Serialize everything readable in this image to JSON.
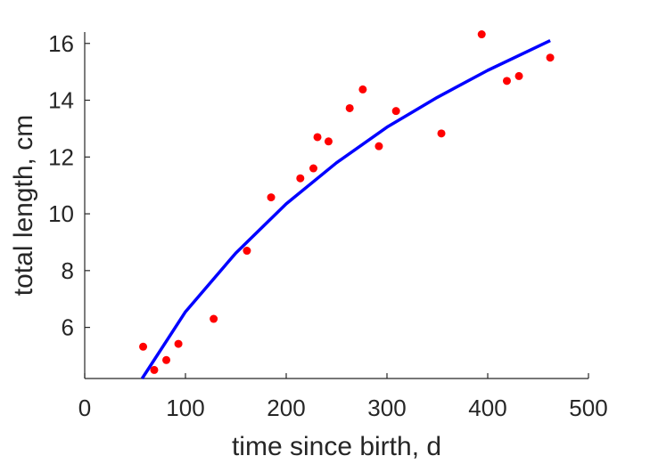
{
  "chart_data": {
    "type": "scatter",
    "xlabel": "time since birth, d",
    "ylabel": "total length, cm",
    "xlim": [
      0,
      500
    ],
    "ylim": [
      4.2,
      16.4
    ],
    "xticks": [
      0,
      100,
      200,
      300,
      400,
      500
    ],
    "yticks": [
      6,
      8,
      10,
      12,
      14,
      16
    ],
    "grid": false,
    "series": [
      {
        "kind": "points",
        "color": "#ff0000",
        "x": [
          58,
          69,
          81,
          93,
          128,
          161,
          185,
          214,
          227,
          231,
          242,
          263,
          276,
          292,
          309,
          354,
          394,
          419,
          431,
          462
        ],
        "y": [
          5.32,
          4.5,
          4.85,
          5.42,
          6.3,
          8.7,
          10.58,
          11.25,
          11.6,
          12.7,
          12.55,
          13.72,
          14.38,
          12.38,
          13.62,
          12.83,
          16.32,
          14.68,
          14.85,
          15.5
        ]
      },
      {
        "kind": "fit",
        "color": "#0000ff",
        "x": [
          57,
          100,
          150,
          200,
          250,
          300,
          350,
          400,
          462
        ],
        "y": [
          4.2,
          6.55,
          8.62,
          10.35,
          11.8,
          13.05,
          14.1,
          15.05,
          16.1
        ]
      }
    ]
  }
}
